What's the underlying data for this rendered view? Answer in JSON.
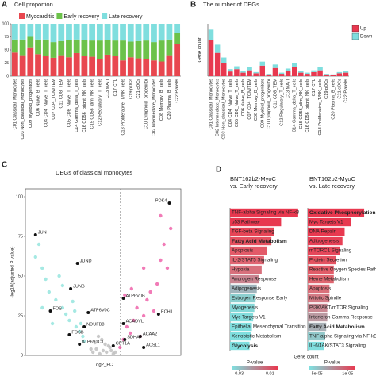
{
  "chart_data": [
    {
      "type": "bar",
      "panel": "A",
      "title": "Cell proportion",
      "stacked": true,
      "categories": [
        "C01 Classical_Monocytes",
        "C03 Non_classical_Monocytes",
        "C09 Myeloid_progenitors",
        "C06 Naive_B_cells",
        "C04 CD4_Naive_T_cells",
        "C07 CD4_TCM/TEM",
        "C11 CD8_TEM",
        "C05 CD8_Naive_T_cells",
        "C14 Gamma_delta_T_cells",
        "C16 CD56_bright_NK_cells",
        "C15 CD56_dim_NK_cells",
        "C12 Regulatory_T_cells",
        "C13 MAIT",
        "C17 CTL",
        "C18 Proliferative_T/NK_cells",
        "C19 pDCs",
        "C21 cDCs",
        "C10 Lymphoid_progenitor",
        "C02 Intermediate_Monocytes",
        "C08 Memory_B_cells",
        "C20 Plasma_B_cells",
        "C22 Platelet"
      ],
      "series": [
        {
          "name": "Myocarditis",
          "color": "#e8474f",
          "values": [
            45,
            40,
            55,
            42,
            38,
            35,
            40,
            36,
            44,
            39,
            37,
            33,
            41,
            38,
            30,
            36,
            34,
            32,
            30,
            28,
            40,
            62
          ]
        },
        {
          "name": "Early recovery",
          "color": "#6cc24a",
          "values": [
            25,
            30,
            20,
            28,
            32,
            30,
            27,
            33,
            26,
            30,
            31,
            35,
            28,
            30,
            38,
            30,
            33,
            36,
            35,
            40,
            30,
            20
          ]
        },
        {
          "name": "Late recovery",
          "color": "#7fdede",
          "values": [
            30,
            30,
            25,
            30,
            30,
            35,
            33,
            31,
            30,
            31,
            32,
            32,
            31,
            32,
            32,
            34,
            33,
            32,
            35,
            32,
            30,
            18
          ]
        }
      ],
      "ylim": [
        0,
        100
      ],
      "yticks": [
        0,
        25,
        50,
        75,
        100
      ]
    },
    {
      "type": "bar",
      "panel": "B",
      "title": "The number of DEGs",
      "stacked": true,
      "ylabel": "Gene count",
      "categories": [
        "C01 Classical_Monocytes",
        "C02 Intermediate_Monocytes",
        "C03 Non_classical_Monocytes",
        "C04 CD4_Naive_T_cells",
        "C05 CD8_Naive_T_cells",
        "C06 Naive_B_cells",
        "C07 CD4_TCM/TEM",
        "C08 Memory_B_cells",
        "C09 Myeloid_progenitors",
        "C10 Lymphoid_progenitor",
        "C11 CD8_TEM",
        "C12 Regulatory_T_cells",
        "C13 MAIT",
        "C14 Gamma_delta_T_cells",
        "C15 CD56_dim_NK_cells",
        "C16 CD56_bright_NK_cells",
        "C17 CTL",
        "C18 Proliferative_T/NK_cells",
        "C19 pDCs",
        "C20 Plasma_B_cells",
        "C21 cDCs",
        "C22 Platelet"
      ],
      "series": [
        {
          "name": "Up",
          "color": "#e8384f",
          "values": [
            62,
            40,
            22,
            8,
            12,
            6,
            10,
            5,
            18,
            3,
            14,
            4,
            9,
            16,
            6,
            4,
            7,
            10,
            3,
            2,
            5,
            6
          ]
        },
        {
          "name": "Down",
          "color": "#7fdede",
          "values": [
            18,
            14,
            10,
            4,
            5,
            3,
            5,
            2,
            7,
            1,
            6,
            2,
            4,
            7,
            3,
            2,
            3,
            5,
            1,
            1,
            2,
            3
          ]
        }
      ],
      "ylim": [
        0,
        90
      ],
      "legend": "top-right"
    },
    {
      "type": "scatter",
      "panel": "C",
      "title": "DEGs of classical monocytes",
      "xlabel": "Log2_FC",
      "ylabel": "-log10(adjusted P value)",
      "series": [
        {
          "color": "#bbbbbb",
          "x": [
            -0.15,
            -0.1,
            -0.05,
            0,
            0.05,
            0.1,
            0.15,
            -0.12,
            0.08,
            -0.02,
            0.12,
            -0.18,
            0.18,
            0.03,
            -0.07
          ],
          "values": [
            2,
            4,
            1,
            3,
            2,
            5,
            1,
            8,
            6,
            10,
            3,
            4,
            2,
            7,
            12
          ]
        },
        {
          "color": "#8fe3dc",
          "x": [
            -1.0,
            -0.9,
            -0.85,
            -0.8,
            -0.7,
            -0.65,
            -0.6,
            -0.55,
            -0.5,
            -0.45,
            -0.4,
            -0.35,
            -0.3,
            -0.28,
            -0.9,
            -0.75,
            -0.6,
            -0.42,
            -0.33,
            -0.95
          ],
          "values": [
            62,
            55,
            48,
            40,
            35,
            50,
            30,
            26,
            22,
            34,
            18,
            15,
            12,
            9,
            30,
            20,
            44,
            28,
            20,
            70
          ]
        },
        {
          "color": "#ee5aa5",
          "x": [
            0.25,
            0.3,
            0.35,
            0.4,
            0.45,
            0.5,
            0.55,
            0.6,
            0.65,
            0.7,
            0.75,
            0.8,
            0.85,
            0.9,
            0.95,
            1.0,
            0.32,
            0.42,
            0.6,
            0.85
          ],
          "values": [
            5,
            10,
            18,
            14,
            22,
            30,
            12,
            25,
            35,
            40,
            28,
            45,
            60,
            70,
            55,
            80,
            38,
            42,
            55,
            88
          ]
        }
      ],
      "annotations": [
        {
          "text": "PDK4",
          "x": 0.98,
          "y": 96
        },
        {
          "text": "JUN",
          "x": -1.0,
          "y": 76
        },
        {
          "text": "JUND",
          "x": -0.38,
          "y": 58
        },
        {
          "text": "JUNB",
          "x": -0.48,
          "y": 42
        },
        {
          "text": "FOS",
          "x": -0.78,
          "y": 28
        },
        {
          "text": "ATP6V0C",
          "x": -0.22,
          "y": 27
        },
        {
          "text": "NDUFB8",
          "x": -0.28,
          "y": 18
        },
        {
          "text": "FOSB",
          "x": -0.5,
          "y": 13
        },
        {
          "text": "ATP6V1C1",
          "x": -0.35,
          "y": 7
        },
        {
          "text": "ATP6V0B",
          "x": 0.3,
          "y": 36
        },
        {
          "text": "ECH1",
          "x": 0.82,
          "y": 26
        },
        {
          "text": "ACADVL",
          "x": 0.3,
          "y": 20
        },
        {
          "text": "ACAA2",
          "x": 0.55,
          "y": 12
        },
        {
          "text": "SDHA",
          "x": 0.32,
          "y": 10
        },
        {
          "text": "CPT1A",
          "x": 0.15,
          "y": 6
        },
        {
          "text": "ACSL1",
          "x": 0.6,
          "y": 5
        }
      ],
      "vlines": [
        -0.25,
        0.25
      ],
      "xlim": [
        -1.15,
        1.15
      ],
      "ylim": [
        0,
        105
      ],
      "yticks": [
        0,
        25,
        50,
        75,
        100
      ]
    },
    {
      "type": "bar",
      "panel": "D",
      "orientation": "horizontal",
      "title": "BNT162b2-MyoC vs. Early recovery",
      "xlabel": "Gene count",
      "categories": [
        "TNF-alpha Signaling via NF-kB",
        "p53 Pathway",
        "TGF-beta Signaling",
        "Fatty Acid Metabolism",
        "Apoptosis",
        "IL-2/STAT5 Signaling",
        "Hypoxia",
        "Androgen Response",
        "Adipogenesis",
        "Estrogen Response Early",
        "Myogenesis",
        "Myc Targets V1",
        "Epithelial Mesenchymal Transition",
        "Xenobiotic Metabolism",
        "Glycolysis"
      ],
      "values": [
        56,
        42,
        36,
        34,
        30,
        28,
        26,
        24,
        22,
        21,
        20,
        19,
        18,
        17,
        16
      ],
      "colors": [
        "#e8384f",
        "#e8384f",
        "#e74556",
        "#e5505f",
        "#e35a68",
        "#e06572",
        "#d8707c",
        "#c98490",
        "#a0b4bc",
        "#8ccfcf",
        "#86d8d8",
        "#82dcdc",
        "#80dede",
        "#7fdfdf",
        "#7fe0e0"
      ],
      "bold": [
        3,
        14
      ],
      "xlim": [
        0,
        60
      ],
      "colorbar": {
        "title": "P-value",
        "colors": [
          "#7fe0e0",
          "#e8384f"
        ],
        "lim": [
          0.035,
          0.005
        ],
        "ticks": [
          {
            "value": 0.03,
            "label": "0.03"
          },
          {
            "value": 0.01,
            "label": "0.01"
          }
        ]
      }
    },
    {
      "type": "bar",
      "panel": "",
      "orientation": "horizontal",
      "title": "BNT162b2-MyoC vs. Late recovery",
      "categories": [
        "Oxidative Phosphorylation",
        "Myc Targets V1",
        "DNA Repair",
        "Adipogenesis",
        "mTORC1 Signaling",
        "Protein Secretion",
        "Reactive Oxygen Species Pathway",
        "Heme Metabolism",
        "Apoptosis",
        "Mitotic Spindle",
        "PI3K/AKT/mTOR Signaling",
        "Interferon Gamma Response",
        "Fatty Acid Metabolism",
        "TNF-alpha Signaling via NF-kB",
        "IL-6/JAK/STAT3 Signaling"
      ],
      "values": [
        52,
        40,
        34,
        32,
        30,
        26,
        24,
        24,
        20,
        20,
        18,
        18,
        17,
        16,
        15
      ],
      "colors": [
        "#e8384f",
        "#e8384f",
        "#e8384f",
        "#e73f55",
        "#e6475a",
        "#e45260",
        "#e25c68",
        "#df6670",
        "#da707a",
        "#d47b85",
        "#ca8892",
        "#bb9aa2",
        "#a8b0b6",
        "#92c8ca",
        "#80dede"
      ],
      "bold": [
        0,
        12
      ],
      "xlim": [
        0,
        60
      ],
      "colorbar": {
        "title": "P-value",
        "colors": [
          "#7fe0e0",
          "#e8384f"
        ],
        "lim": [
          6e-05,
          0
        ],
        "ticks": [
          {
            "value": 5e-05,
            "label": "5e-05"
          },
          {
            "value": 1e-05,
            "label": "1e-05"
          }
        ]
      }
    }
  ]
}
